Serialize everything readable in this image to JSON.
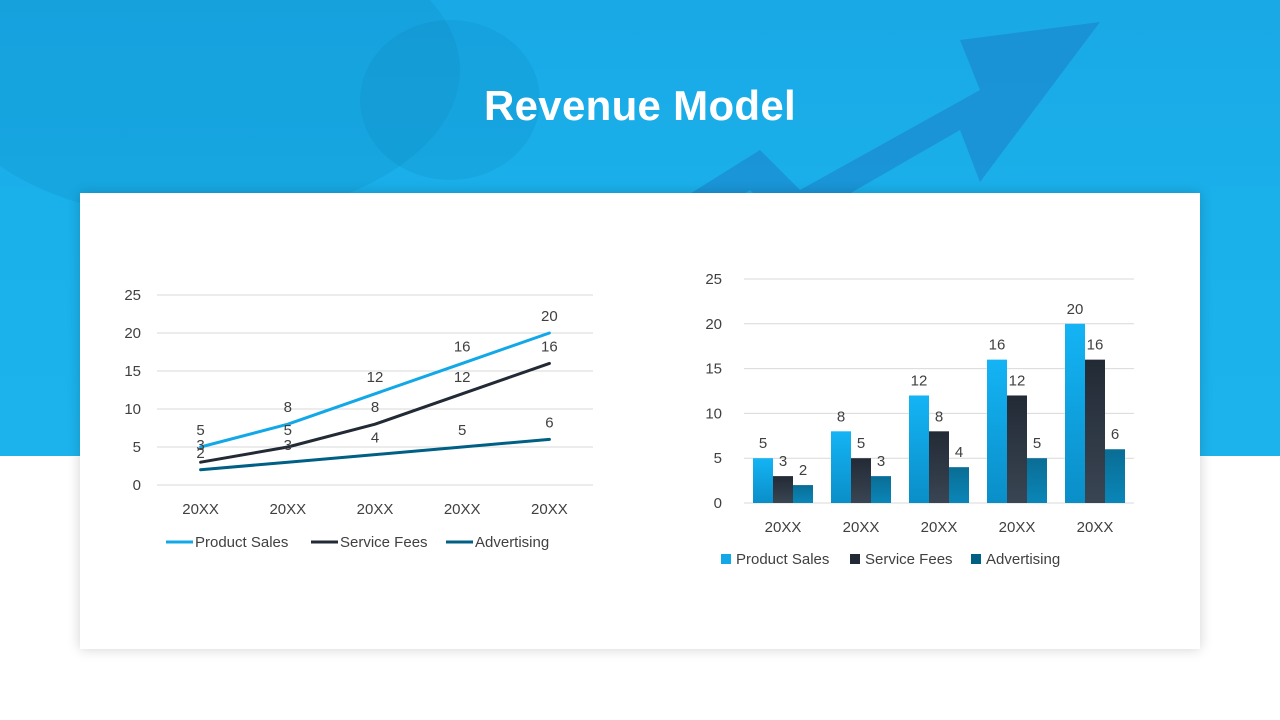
{
  "page": {
    "title": "Revenue Model"
  },
  "colors": {
    "product_sales": "#12a8e8",
    "service_fees": "#222a35",
    "advertising": "#005f84",
    "grid": "#d9d9d9",
    "text": "#404040"
  },
  "icons": {
    "background": "arrow-up-right-icon"
  },
  "chart_data": [
    {
      "type": "line",
      "categories": [
        "20XX",
        "20XX",
        "20XX",
        "20XX",
        "20XX"
      ],
      "series": [
        {
          "name": "Product Sales",
          "values": [
            5,
            8,
            12,
            16,
            20
          ]
        },
        {
          "name": "Service Fees",
          "values": [
            3,
            5,
            8,
            12,
            16
          ]
        },
        {
          "name": "Advertising",
          "values": [
            2,
            3,
            4,
            5,
            6
          ]
        }
      ],
      "yticks": [
        0,
        5,
        10,
        15,
        20,
        25
      ],
      "ylim": [
        0,
        25
      ],
      "grid": true,
      "legend": "bottom",
      "data_labels": true
    },
    {
      "type": "bar",
      "categories": [
        "20XX",
        "20XX",
        "20XX",
        "20XX",
        "20XX"
      ],
      "series": [
        {
          "name": "Product Sales",
          "values": [
            5,
            8,
            12,
            16,
            20
          ]
        },
        {
          "name": "Service Fees",
          "values": [
            3,
            5,
            8,
            12,
            16
          ]
        },
        {
          "name": "Advertising",
          "values": [
            2,
            3,
            4,
            5,
            6
          ]
        }
      ],
      "yticks": [
        0,
        5,
        10,
        15,
        20,
        25
      ],
      "ylim": [
        0,
        25
      ],
      "grid": true,
      "legend": "bottom",
      "data_labels": true
    }
  ]
}
